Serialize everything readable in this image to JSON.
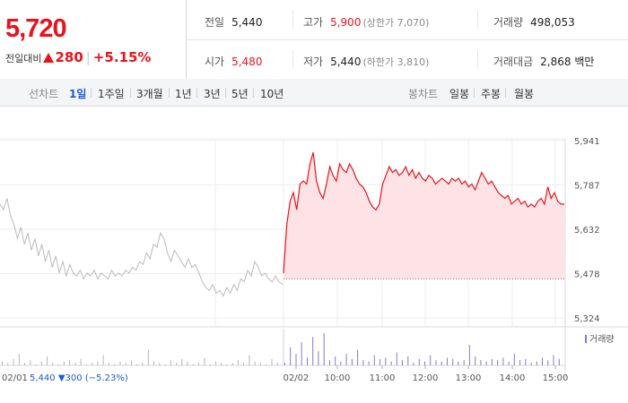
{
  "quote": {
    "price": "5,720",
    "change_label": "전일대비",
    "change_value": "280",
    "change_pct": "+5.15%"
  },
  "stats": {
    "prev_close": {
      "label": "전일",
      "value": "5,440"
    },
    "high": {
      "label": "고가",
      "value": "5,900",
      "sub": "(상한가 7,070)"
    },
    "volume": {
      "label": "거래량",
      "value": "498,053"
    },
    "open": {
      "label": "시가",
      "value": "5,480"
    },
    "low": {
      "label": "저가",
      "value": "5,440",
      "sub": "(하한가 3,810)"
    },
    "amount": {
      "label": "거래대금",
      "value": "2,868 백만"
    }
  },
  "line_tabs": {
    "label": "선차트",
    "items": [
      "1일",
      "1주일",
      "3개월",
      "1년",
      "3년",
      "5년",
      "10년"
    ],
    "active": 0
  },
  "candle_tabs": {
    "label": "봉차트",
    "items": [
      "일봉",
      "주봉",
      "월봉"
    ]
  },
  "colors": {
    "up": "#e8141d",
    "down": "#1a5ad7",
    "prev_line": "#bbbbbb",
    "fill": "#fde3e5",
    "volume": "#8877cc"
  },
  "chart_data": {
    "type": "line",
    "y_ticks": [
      "5,941",
      "5,787",
      "5,632",
      "5,478",
      "5,324"
    ],
    "ylim": [
      5324,
      5941
    ],
    "x_ticks": [
      "02/02",
      "10:00",
      "11:00",
      "12:00",
      "13:00",
      "14:00",
      "15:00"
    ],
    "prev_session_label": "02/01",
    "prev_session_summary": {
      "close": "5,440",
      "change": "300",
      "pct": "(−5.23%)"
    },
    "volume_legend": "거래량",
    "baseline": 5460,
    "prev_series": [
      5720,
      5700,
      5740,
      5680,
      5650,
      5600,
      5640,
      5580,
      5620,
      5560,
      5600,
      5540,
      5580,
      5520,
      5560,
      5500,
      5540,
      5480,
      5520,
      5470,
      5510,
      5480,
      5470,
      5490,
      5460,
      5480,
      5470,
      5490,
      5460,
      5480,
      5470,
      5460,
      5490,
      5470,
      5480,
      5470,
      5490,
      5480,
      5500,
      5490,
      5520,
      5510,
      5550,
      5530,
      5580,
      5570,
      5620,
      5600,
      5550,
      5520,
      5560,
      5540,
      5520,
      5500,
      5530,
      5500,
      5510,
      5480,
      5450,
      5430,
      5420,
      5440,
      5410,
      5420,
      5400,
      5430,
      5410,
      5440,
      5420,
      5460,
      5450,
      5490,
      5470,
      5520,
      5500,
      5470,
      5480,
      5460,
      5450,
      5470,
      5450,
      5440
    ],
    "series": [
      {
        "name": "",
        "values": [
          5480,
          5650,
          5730,
          5760,
          5700,
          5790,
          5800,
          5790,
          5860,
          5900,
          5800,
          5760,
          5740,
          5790,
          5850,
          5820,
          5800,
          5860,
          5840,
          5830,
          5860,
          5840,
          5810,
          5790,
          5780,
          5760,
          5730,
          5710,
          5700,
          5720,
          5790,
          5820,
          5850,
          5830,
          5840,
          5820,
          5830,
          5850,
          5820,
          5840,
          5810,
          5830,
          5810,
          5800,
          5820,
          5810,
          5790,
          5800,
          5810,
          5800,
          5790,
          5810,
          5800,
          5810,
          5790,
          5800,
          5780,
          5790,
          5770,
          5800,
          5830,
          5810,
          5790,
          5800,
          5780,
          5760,
          5750,
          5740,
          5750,
          5720,
          5730,
          5740,
          5720,
          5730,
          5710,
          5720,
          5710,
          5730,
          5740,
          5720,
          5780,
          5740,
          5760,
          5730,
          5720,
          5720
        ]
      }
    ],
    "volume": [
      3,
      2,
      5,
      9,
      2,
      4,
      1,
      3,
      7,
      2,
      1,
      3,
      4,
      2,
      5,
      1,
      2,
      3,
      8,
      2,
      1,
      3,
      2,
      4,
      1,
      2,
      12,
      3,
      2,
      1,
      4,
      2,
      5,
      3,
      1,
      2,
      6,
      1,
      3,
      2,
      1,
      2,
      4,
      2,
      8,
      3,
      2,
      1,
      5,
      2,
      2,
      14,
      9,
      18,
      6,
      22,
      11,
      25,
      4,
      7,
      3,
      9,
      5,
      12,
      4,
      3,
      8,
      5,
      6,
      3,
      10,
      4,
      7,
      2,
      5,
      3,
      8,
      4,
      3,
      6,
      5,
      3,
      4,
      16,
      7,
      4,
      3,
      5,
      4,
      6,
      3,
      9,
      4,
      5,
      2,
      3,
      6,
      4,
      8,
      5
    ]
  }
}
